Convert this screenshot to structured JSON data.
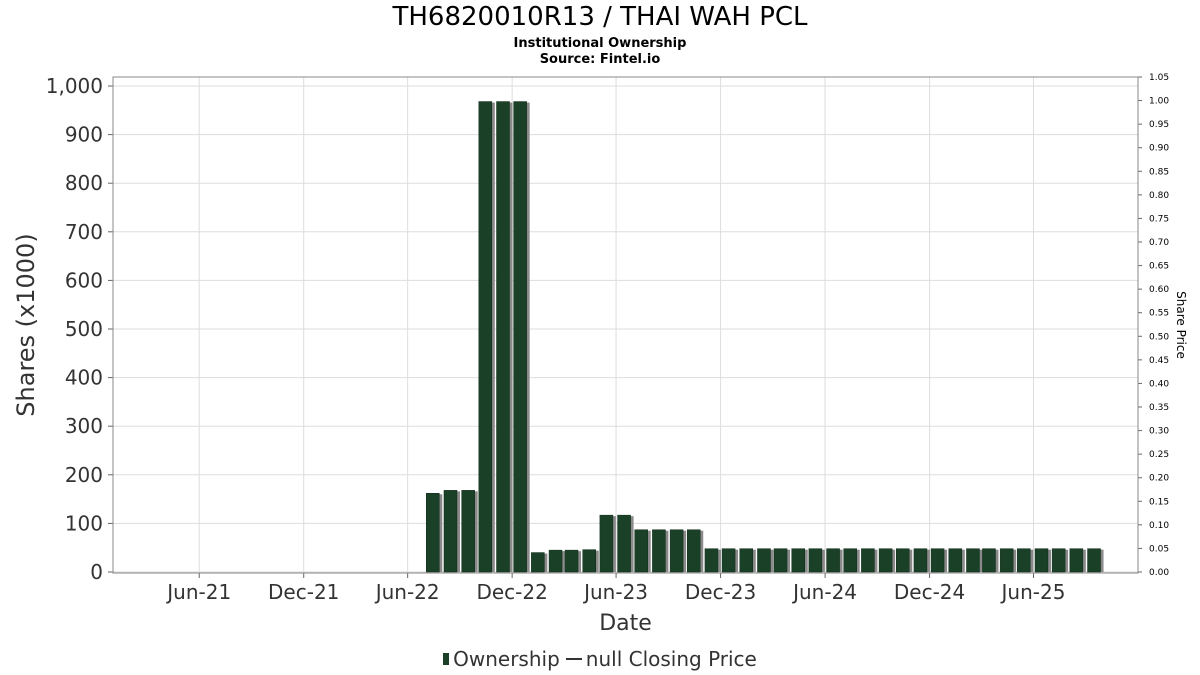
{
  "chart_data": {
    "type": "bar",
    "title": "TH6820010R13 / THAI WAH PCL",
    "subtitle_1": "Institutional Ownership",
    "subtitle_2": "Source: Fintel.io",
    "xlabel": "Date",
    "ylabel": "Shares (x1000)",
    "y2label": "Share Price",
    "ylim": [
      0,
      1000
    ],
    "y2lim": [
      0,
      1.05
    ],
    "yticks": [
      "0",
      "100",
      "200",
      "300",
      "400",
      "500",
      "600",
      "700",
      "800",
      "900",
      "1,000"
    ],
    "y2ticks": [
      "0.00",
      "0.05",
      "0.10",
      "0.15",
      "0.20",
      "0.25",
      "0.30",
      "0.35",
      "0.40",
      "0.45",
      "0.50",
      "0.55",
      "0.60",
      "0.65",
      "0.70",
      "0.75",
      "0.80",
      "0.85",
      "0.90",
      "0.95",
      "1.00",
      "1.05"
    ],
    "xticks": [
      "Jun-21",
      "Dec-21",
      "Jun-22",
      "Dec-22",
      "Jun-23",
      "Dec-23",
      "Jun-24",
      "Dec-24",
      "Jun-25"
    ],
    "grid": true,
    "legend_position": "bottom-center",
    "legend": [
      "Ownership",
      "null Closing Price"
    ],
    "colors": {
      "bar": "#1a4127",
      "bar_shadow": "#8a8a8a",
      "grid": "#dddddd"
    },
    "series": [
      {
        "name": "Ownership",
        "dates": [
          "2022-07-15",
          "2022-08-15",
          "2022-09-15",
          "2022-10-15",
          "2022-11-15",
          "2022-12-15",
          "2023-01-15",
          "2023-02-15",
          "2023-03-15",
          "2023-04-15",
          "2023-05-15",
          "2023-06-15",
          "2023-07-15",
          "2023-08-15",
          "2023-09-15",
          "2023-10-15",
          "2023-11-15",
          "2023-12-15",
          "2024-01-15",
          "2024-02-15",
          "2024-03-15",
          "2024-04-15",
          "2024-05-15",
          "2024-06-15",
          "2024-07-15",
          "2024-08-15",
          "2024-09-15",
          "2024-10-15",
          "2024-11-15",
          "2024-12-15",
          "2025-01-15",
          "2025-02-15",
          "2025-03-15",
          "2025-04-15",
          "2025-05-15",
          "2025-06-15",
          "2025-07-15",
          "2025-08-15",
          "2025-09-15"
        ],
        "values": [
          162,
          168,
          168,
          968,
          968,
          968,
          40,
          45,
          45,
          46,
          117,
          117,
          87,
          87,
          87,
          87,
          48,
          48,
          48,
          48,
          48,
          48,
          48,
          48,
          48,
          48,
          48,
          48,
          48,
          48,
          48,
          48,
          48,
          48,
          48,
          48,
          48,
          48,
          48
        ]
      }
    ]
  }
}
